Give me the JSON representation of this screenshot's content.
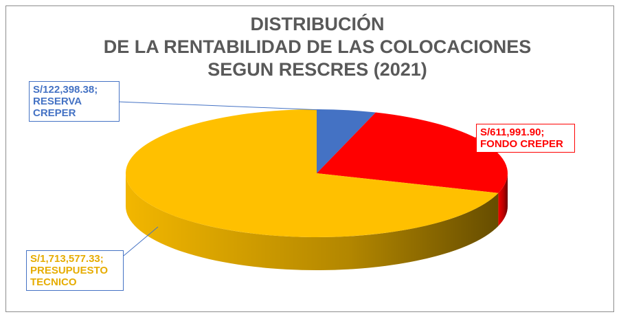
{
  "chart_data": {
    "type": "pie",
    "title": [
      "DISTRIBUCIÓN",
      "DE LA RENTABILIDAD DE LAS COLOCACIONES",
      "SEGUN RESCRES (2021)"
    ],
    "categories": [
      "RESERVA CREPER",
      "FONDO CREPER",
      "PRESUPUESTO TECNICO"
    ],
    "values": [
      122398.38,
      611991.9,
      1713577.33
    ],
    "value_labels": [
      "S/122,398.38;",
      "S/611,991.90;",
      "S/1,713,577.33;"
    ],
    "colors": [
      "#4472c4",
      "#ff0000",
      "#ffc000"
    ]
  }
}
